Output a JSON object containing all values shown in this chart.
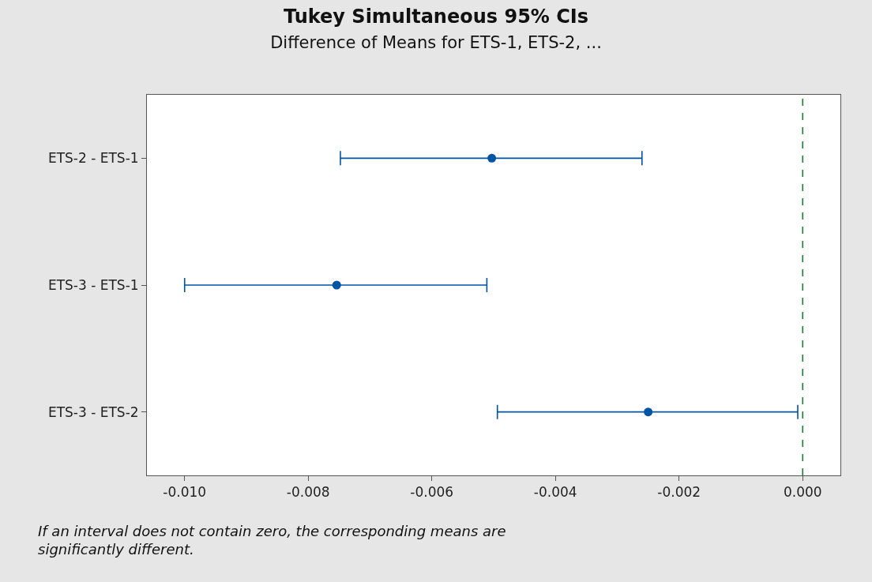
{
  "chart_data": {
    "type": "scatter",
    "orientation": "horizontal",
    "title": "Tukey Simultaneous 95% CIs",
    "subtitle": "Difference of Means for ETS-1, ETS-2, ...",
    "categories": [
      "ETS-2 - ETS-1",
      "ETS-3 - ETS-1",
      "ETS-3 - ETS-2"
    ],
    "series": [
      {
        "color": "#0054a6",
        "values": [
          -0.00503,
          -0.00754,
          -0.0025
        ],
        "errors": [
          [
            -0.00748,
            -0.0026
          ],
          [
            -0.01,
            -0.00511
          ],
          [
            -0.00494,
            -8e-05
          ]
        ]
      }
    ],
    "marker": "circle",
    "xlim": [
      -0.01061,
      0.00061
    ],
    "xticks": [
      {
        "value": -0.01,
        "label": "-0.010"
      },
      {
        "value": -0.008,
        "label": "-0.008"
      },
      {
        "value": -0.006,
        "label": "-0.006"
      },
      {
        "value": -0.004,
        "label": "-0.004"
      },
      {
        "value": -0.002,
        "label": "-0.002"
      },
      {
        "value": 0,
        "label": "0.000"
      }
    ],
    "ref_lines": [
      {
        "axis": "x",
        "value": 0,
        "color": "#1a7f2e",
        "line_style": "dashed"
      }
    ],
    "annotations": [
      "If an interval does not contain zero, the corresponding means are significantly different."
    ]
  }
}
